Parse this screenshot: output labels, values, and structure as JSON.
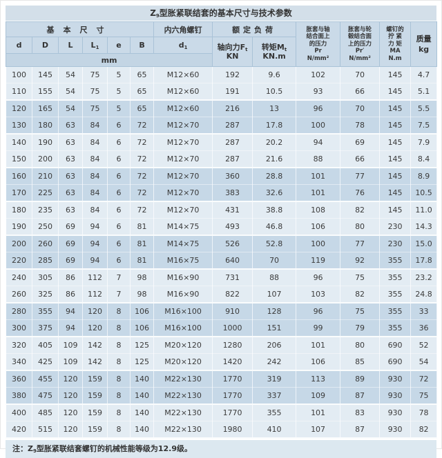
{
  "title": {
    "pre": "Z",
    "sub": "9",
    "post": "型胀紧联结套的基本尺寸与技术参数"
  },
  "header": {
    "group_basic": "基本尺寸",
    "group_screw": "内六角螺钉",
    "group_load": "额定负荷",
    "col_d": "d",
    "col_D": "D",
    "col_L": "L",
    "col_L1": {
      "pre": "L",
      "sub": "1"
    },
    "col_e": "e",
    "col_B": "B",
    "col_d1": {
      "pre": "d",
      "sub": "1"
    },
    "col_axial": {
      "pre": "轴向力F",
      "sub": "t",
      "unit": "KN"
    },
    "col_torque": {
      "pre": "转矩M",
      "sub": "t",
      "unit": "KN.m"
    },
    "col_pr": "胀套与轴\n结合面上\n的压力\nPr\nN/mm²",
    "col_pr2": "胀套与轮\n毂结合面\n上的压力\nPr′\nN/mm²",
    "col_ma": "螺钉的\n拧 紧\n力 矩\nMA\nN.m",
    "col_mass": "质量\nkg",
    "unit_row": "mm"
  },
  "note": {
    "pre": "注：Z",
    "sub": "9",
    "post": "型胀紧联结套螺钉的机械性能等级为12.9级。"
  },
  "colors": {
    "title_bar": "#d3dfe9",
    "header_cell": "#cadae8",
    "unit_row": "#c3d5e4",
    "row_light": "#e3ecf3",
    "row_dark": "#c6d8e7",
    "note_bar": "#dce8f0",
    "text": "#333333"
  },
  "chart_data": {
    "type": "table",
    "title": "Z9型胀紧联结套的基本尺寸与技术参数",
    "columns": [
      "d (mm)",
      "D (mm)",
      "L (mm)",
      "L1 (mm)",
      "e (mm)",
      "B (mm)",
      "内六角螺钉 d1 (mm)",
      "轴向力Ft (KN)",
      "转矩Mt (KN.m)",
      "胀套与轴结合面上的压力 Pr (N/mm²)",
      "胀套与轮毂结合面上的压力 Pr′ (N/mm²)",
      "螺钉的拧紧力矩 MA (N.m)",
      "质量 (kg)"
    ],
    "rows": [
      [
        "100",
        "145",
        "54",
        "75",
        "5",
        "65",
        "M12×60",
        "192",
        "9.6",
        "102",
        "70",
        "145",
        "4.7"
      ],
      [
        "110",
        "155",
        "54",
        "75",
        "5",
        "65",
        "M12×60",
        "191",
        "10.5",
        "93",
        "66",
        "145",
        "5.1"
      ],
      [
        "120",
        "165",
        "54",
        "75",
        "5",
        "65",
        "M12×60",
        "216",
        "13",
        "96",
        "70",
        "145",
        "5.5"
      ],
      [
        "130",
        "180",
        "63",
        "84",
        "6",
        "72",
        "M12×70",
        "287",
        "17.8",
        "100",
        "78",
        "145",
        "7.5"
      ],
      [
        "140",
        "190",
        "63",
        "84",
        "6",
        "72",
        "M12×70",
        "287",
        "20.2",
        "94",
        "69",
        "145",
        "7.9"
      ],
      [
        "150",
        "200",
        "63",
        "84",
        "6",
        "72",
        "M12×70",
        "287",
        "21.6",
        "88",
        "66",
        "145",
        "8.4"
      ],
      [
        "160",
        "210",
        "63",
        "84",
        "6",
        "72",
        "M12×70",
        "360",
        "28.8",
        "101",
        "77",
        "145",
        "8.9"
      ],
      [
        "170",
        "225",
        "63",
        "84",
        "6",
        "72",
        "M12×70",
        "383",
        "32.6",
        "101",
        "76",
        "145",
        "10.5"
      ],
      [
        "180",
        "235",
        "63",
        "84",
        "6",
        "72",
        "M12×70",
        "431",
        "38.8",
        "108",
        "82",
        "145",
        "11.0"
      ],
      [
        "190",
        "250",
        "69",
        "94",
        "6",
        "81",
        "M14×75",
        "493",
        "46.8",
        "106",
        "80",
        "230",
        "14.3"
      ],
      [
        "200",
        "260",
        "69",
        "94",
        "6",
        "81",
        "M14×75",
        "526",
        "52.8",
        "100",
        "77",
        "230",
        "15.0"
      ],
      [
        "220",
        "285",
        "69",
        "94",
        "6",
        "81",
        "M16×75",
        "640",
        "70",
        "119",
        "92",
        "355",
        "17.8"
      ],
      [
        "240",
        "305",
        "86",
        "112",
        "7",
        "98",
        "M16×90",
        "731",
        "88",
        "96",
        "75",
        "355",
        "23.2"
      ],
      [
        "260",
        "325",
        "86",
        "112",
        "7",
        "98",
        "M16×90",
        "822",
        "107",
        "103",
        "82",
        "355",
        "24.8"
      ],
      [
        "280",
        "355",
        "94",
        "120",
        "8",
        "106",
        "M16×100",
        "910",
        "128",
        "96",
        "75",
        "355",
        "33"
      ],
      [
        "300",
        "375",
        "94",
        "120",
        "8",
        "106",
        "M16×100",
        "1000",
        "151",
        "99",
        "79",
        "355",
        "36"
      ],
      [
        "320",
        "405",
        "109",
        "142",
        "8",
        "125",
        "M20×120",
        "1280",
        "206",
        "101",
        "80",
        "690",
        "52"
      ],
      [
        "340",
        "425",
        "109",
        "142",
        "8",
        "125",
        "M20×120",
        "1420",
        "242",
        "106",
        "85",
        "690",
        "54"
      ],
      [
        "360",
        "455",
        "120",
        "159",
        "8",
        "140",
        "M22×130",
        "1770",
        "319",
        "113",
        "89",
        "930",
        "72"
      ],
      [
        "380",
        "475",
        "120",
        "159",
        "8",
        "140",
        "M22×130",
        "1770",
        "337",
        "109",
        "87",
        "930",
        "75"
      ],
      [
        "400",
        "485",
        "120",
        "159",
        "8",
        "140",
        "M22×130",
        "1770",
        "355",
        "101",
        "83",
        "930",
        "78"
      ],
      [
        "420",
        "515",
        "120",
        "159",
        "8",
        "140",
        "M22×130",
        "1980",
        "410",
        "107",
        "87",
        "930",
        "82"
      ]
    ],
    "note": "注：Z9型胀紧联结套螺钉的机械性能等级为12.9级。"
  }
}
